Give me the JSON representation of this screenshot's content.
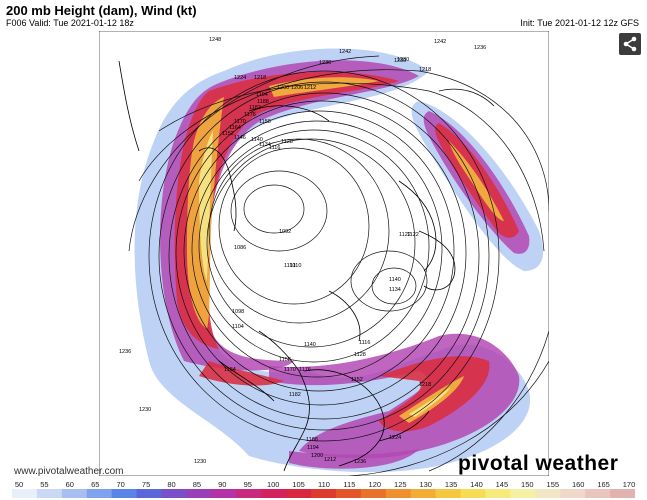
{
  "header": {
    "title": "200 mb Height (dam), Wind (kt)",
    "valid": "F006 Valid: Tue 2021-01-12 18z",
    "init": "Init: Tue 2021-01-12 12z GFS"
  },
  "map": {
    "height_labels": [
      "1248",
      "1242",
      "1236",
      "1230",
      "1224",
      "1218",
      "1212",
      "1206",
      "1200",
      "1194",
      "1188",
      "1182",
      "1176",
      "1170",
      "1164",
      "1158",
      "1152",
      "1146",
      "1140",
      "1134",
      "1128",
      "1122",
      "1116",
      "1110",
      "1104",
      "1098",
      "1092",
      "1086",
      "1164",
      "1236",
      "1230",
      "1236",
      "1242",
      "1236",
      "1230",
      "1218",
      "1110",
      "1140",
      "1134",
      "1128",
      "1122",
      "1116",
      "1182",
      "1176",
      "1170",
      "1158",
      "1140",
      "1152",
      "1188",
      "1194",
      "1200",
      "1212",
      "1224",
      "1230",
      "1218"
    ]
  },
  "footer": {
    "url": "www.pivotalweather.com",
    "brand": "pivotal weather"
  },
  "colorbar": {
    "ticks": [
      "50",
      "55",
      "60",
      "65",
      "70",
      "75",
      "80",
      "85",
      "90",
      "95",
      "100",
      "105",
      "110",
      "115",
      "120",
      "125",
      "130",
      "135",
      "140",
      "145",
      "150",
      "155",
      "160",
      "165",
      "170"
    ],
    "colors": [
      "#e8eefa",
      "#c9d8f3",
      "#a6bff0",
      "#7fa2ec",
      "#5a84e6",
      "#5b66d8",
      "#7a4fc8",
      "#9a3fb8",
      "#b531a6",
      "#c9287f",
      "#d3235e",
      "#d8273f",
      "#dc3b2e",
      "#e2562a",
      "#e8722b",
      "#ee9030",
      "#f2ad37",
      "#f5c640",
      "#f7dc55",
      "#f8ea7a",
      "#f6f0a4",
      "#f3e6c4",
      "#efd7c9",
      "#e9c5bd",
      "#e2b2ae"
    ]
  },
  "icons": {
    "share": "share-icon"
  }
}
